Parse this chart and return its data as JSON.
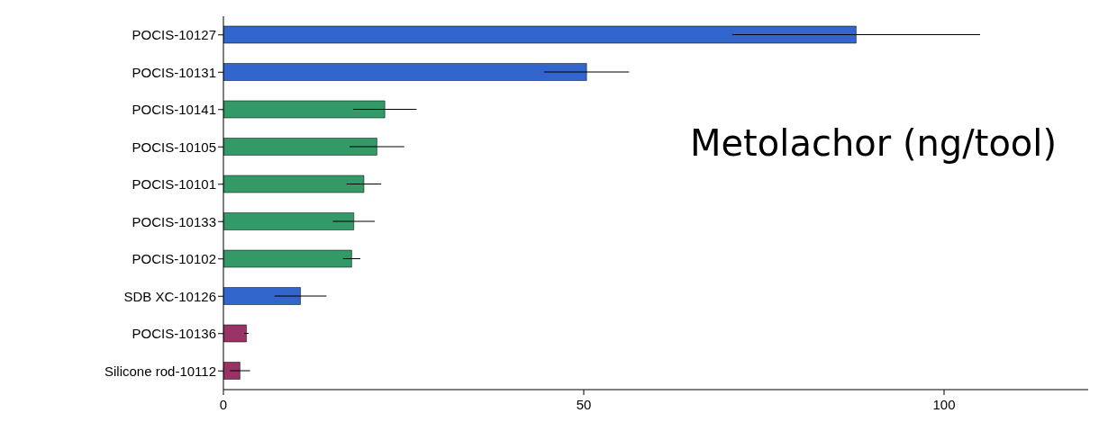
{
  "chart_data": {
    "type": "bar",
    "orientation": "horizontal",
    "title": "Metolachor (ng/tool)",
    "categories": [
      "POCIS-10127",
      "POCIS-10131",
      "POCIS-10141",
      "POCIS-10105",
      "POCIS-10101",
      "POCIS-10133",
      "POCIS-10102",
      "SDB XC-10126",
      "POCIS-10136",
      "Silicone rod-10112"
    ],
    "values": [
      87.8,
      50.4,
      22.4,
      21.3,
      19.5,
      18.1,
      17.8,
      10.7,
      3.2,
      2.3
    ],
    "errors": [
      17.2,
      5.9,
      4.4,
      3.8,
      2.4,
      2.9,
      1.2,
      3.6,
      0.3,
      1.4
    ],
    "colors": [
      "#3366cc",
      "#3366cc",
      "#339966",
      "#339966",
      "#339966",
      "#339966",
      "#339966",
      "#3366cc",
      "#993366",
      "#993366"
    ],
    "xlim": [
      0,
      120
    ],
    "xticks": [
      0,
      50,
      100
    ],
    "grid": false,
    "legend": false
  }
}
